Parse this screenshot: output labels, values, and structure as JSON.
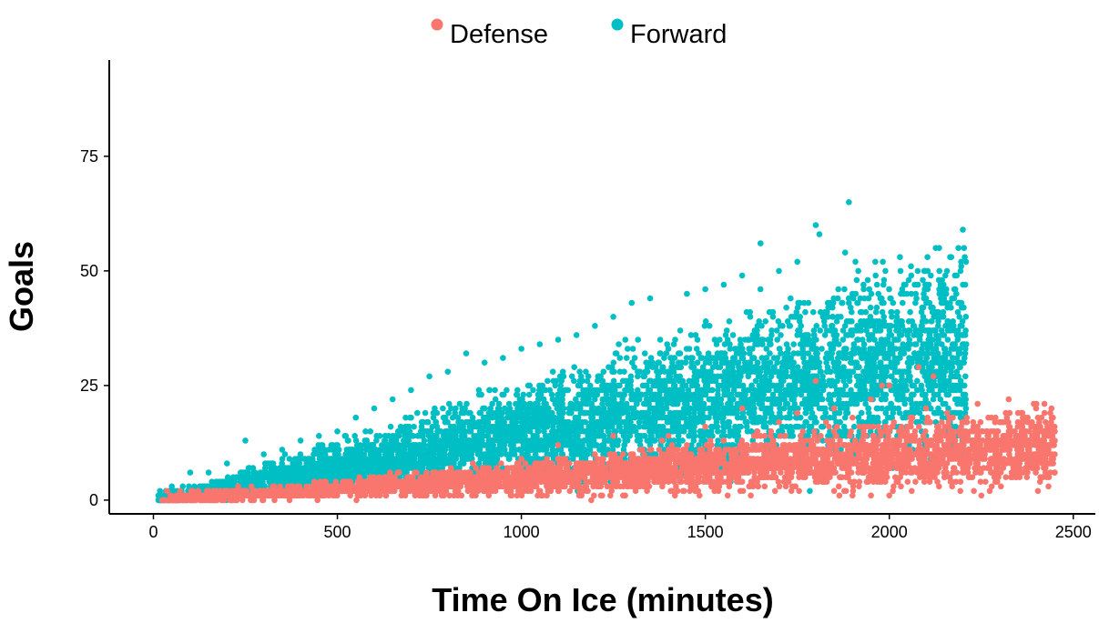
{
  "chart_data": {
    "type": "scatter",
    "title": "",
    "xlabel": "Time On Ice (minutes)",
    "ylabel": "Goals",
    "xlim": [
      -120,
      2560
    ],
    "ylim": [
      -3,
      96
    ],
    "xticks": [
      0,
      500,
      1000,
      1500,
      2000,
      2500
    ],
    "yticks": [
      0,
      25,
      50,
      75
    ],
    "xtick_labels": [
      "0",
      "500",
      "1000",
      "1500",
      "2000",
      "2500"
    ],
    "ytick_labels": [
      "0",
      "25",
      "50",
      "75"
    ],
    "grid": false,
    "legend": {
      "position": "top",
      "entries": [
        "Defense",
        "Forward"
      ]
    },
    "series": [
      {
        "name": "Defense",
        "color": "#F8766D",
        "trend": {
          "x_range": [
            20,
            2450
          ],
          "goals_per_1000_min_mean": 4.8,
          "spread_per_1000_min": 3.6,
          "max_goals": 29
        },
        "points": [
          [
            2450,
            13
          ],
          [
            2400,
            21
          ],
          [
            2380,
            15
          ],
          [
            2350,
            19
          ],
          [
            2320,
            12
          ],
          [
            2300,
            8
          ],
          [
            2250,
            15
          ],
          [
            2240,
            21
          ],
          [
            2200,
            17
          ],
          [
            2180,
            10
          ],
          [
            2120,
            27
          ],
          [
            2100,
            20
          ],
          [
            2080,
            29
          ],
          [
            2050,
            16
          ],
          [
            2000,
            25
          ],
          [
            1980,
            25
          ],
          [
            1950,
            22
          ],
          [
            1900,
            18
          ],
          [
            1850,
            20
          ],
          [
            1800,
            26
          ],
          [
            1750,
            19
          ],
          [
            1700,
            17
          ],
          [
            1650,
            14
          ],
          [
            1600,
            20
          ],
          [
            1550,
            13
          ],
          [
            1500,
            16
          ],
          [
            1450,
            12
          ],
          [
            1400,
            14
          ],
          [
            1350,
            11
          ],
          [
            1300,
            9
          ],
          [
            1250,
            14
          ],
          [
            1200,
            10
          ],
          [
            1150,
            8
          ],
          [
            1100,
            12
          ],
          [
            1050,
            6
          ],
          [
            1000,
            9
          ],
          [
            950,
            5
          ],
          [
            900,
            7
          ],
          [
            850,
            4
          ],
          [
            800,
            6
          ],
          [
            750,
            3
          ],
          [
            700,
            5
          ],
          [
            600,
            4
          ],
          [
            500,
            3
          ],
          [
            400,
            2
          ],
          [
            300,
            2
          ],
          [
            200,
            1
          ],
          [
            100,
            1
          ],
          [
            50,
            0
          ],
          [
            2230,
            2
          ],
          [
            2000,
            1
          ],
          [
            1900,
            1
          ],
          [
            1850,
            2
          ],
          [
            2150,
            5
          ],
          [
            2420,
            7
          ]
        ]
      },
      {
        "name": "Forward",
        "color": "#00BFC4",
        "trend": {
          "x_range": [
            10,
            2210
          ],
          "goals_per_1000_min_mean": 14.5,
          "spread_per_1000_min": 10.5,
          "max_goals": 65
        },
        "points": [
          [
            1890,
            65
          ],
          [
            1800,
            60
          ],
          [
            2200,
            59
          ],
          [
            1650,
            56
          ],
          [
            1810,
            58
          ],
          [
            1880,
            54
          ],
          [
            1750,
            52
          ],
          [
            1700,
            50
          ],
          [
            1600,
            49
          ],
          [
            1550,
            47
          ],
          [
            1500,
            46
          ],
          [
            1450,
            45
          ],
          [
            1350,
            44
          ],
          [
            1300,
            43
          ],
          [
            1250,
            40
          ],
          [
            1200,
            38
          ],
          [
            1150,
            36
          ],
          [
            1100,
            35
          ],
          [
            1050,
            34
          ],
          [
            1000,
            33
          ],
          [
            950,
            31
          ],
          [
            900,
            30
          ],
          [
            850,
            32
          ],
          [
            800,
            28
          ],
          [
            750,
            27
          ],
          [
            700,
            24
          ],
          [
            650,
            22
          ],
          [
            600,
            20
          ],
          [
            550,
            18
          ],
          [
            500,
            15
          ],
          [
            450,
            14
          ],
          [
            400,
            13
          ],
          [
            350,
            11
          ],
          [
            300,
            10
          ],
          [
            250,
            13
          ],
          [
            200,
            8
          ],
          [
            150,
            6
          ],
          [
            100,
            6
          ],
          [
            50,
            3
          ],
          [
            20,
            1
          ],
          [
            2100,
            44
          ],
          [
            2100,
            39
          ],
          [
            1980,
            43
          ],
          [
            1960,
            35
          ],
          [
            1990,
            25
          ],
          [
            1920,
            27
          ],
          [
            1850,
            30
          ],
          [
            1860,
            44
          ],
          [
            1780,
            43
          ],
          [
            1760,
            38
          ],
          [
            1720,
            42
          ],
          [
            1680,
            36
          ],
          [
            1620,
            35
          ],
          [
            1580,
            33
          ],
          [
            1560,
            30
          ],
          [
            1520,
            31
          ],
          [
            1480,
            27
          ],
          [
            1430,
            29
          ],
          [
            1380,
            26
          ],
          [
            1330,
            25
          ],
          [
            1280,
            23
          ],
          [
            1230,
            22
          ],
          [
            1180,
            21
          ],
          [
            1130,
            20
          ],
          [
            1080,
            18
          ],
          [
            1030,
            16
          ],
          [
            980,
            15
          ],
          [
            930,
            14
          ],
          [
            880,
            13
          ],
          [
            830,
            12
          ],
          [
            780,
            11
          ],
          [
            730,
            10
          ],
          [
            680,
            9
          ],
          [
            630,
            8
          ],
          [
            580,
            7
          ],
          [
            530,
            6
          ],
          [
            480,
            5
          ],
          [
            430,
            4
          ],
          [
            380,
            3
          ],
          [
            330,
            2
          ],
          [
            1510,
            10
          ],
          [
            1550,
            12
          ],
          [
            1600,
            11
          ],
          [
            1640,
            15
          ],
          [
            1700,
            14
          ],
          [
            1740,
            9
          ],
          [
            1800,
            15
          ],
          [
            1260,
            5
          ],
          [
            1210,
            6
          ],
          [
            1160,
            4
          ]
        ]
      }
    ]
  }
}
